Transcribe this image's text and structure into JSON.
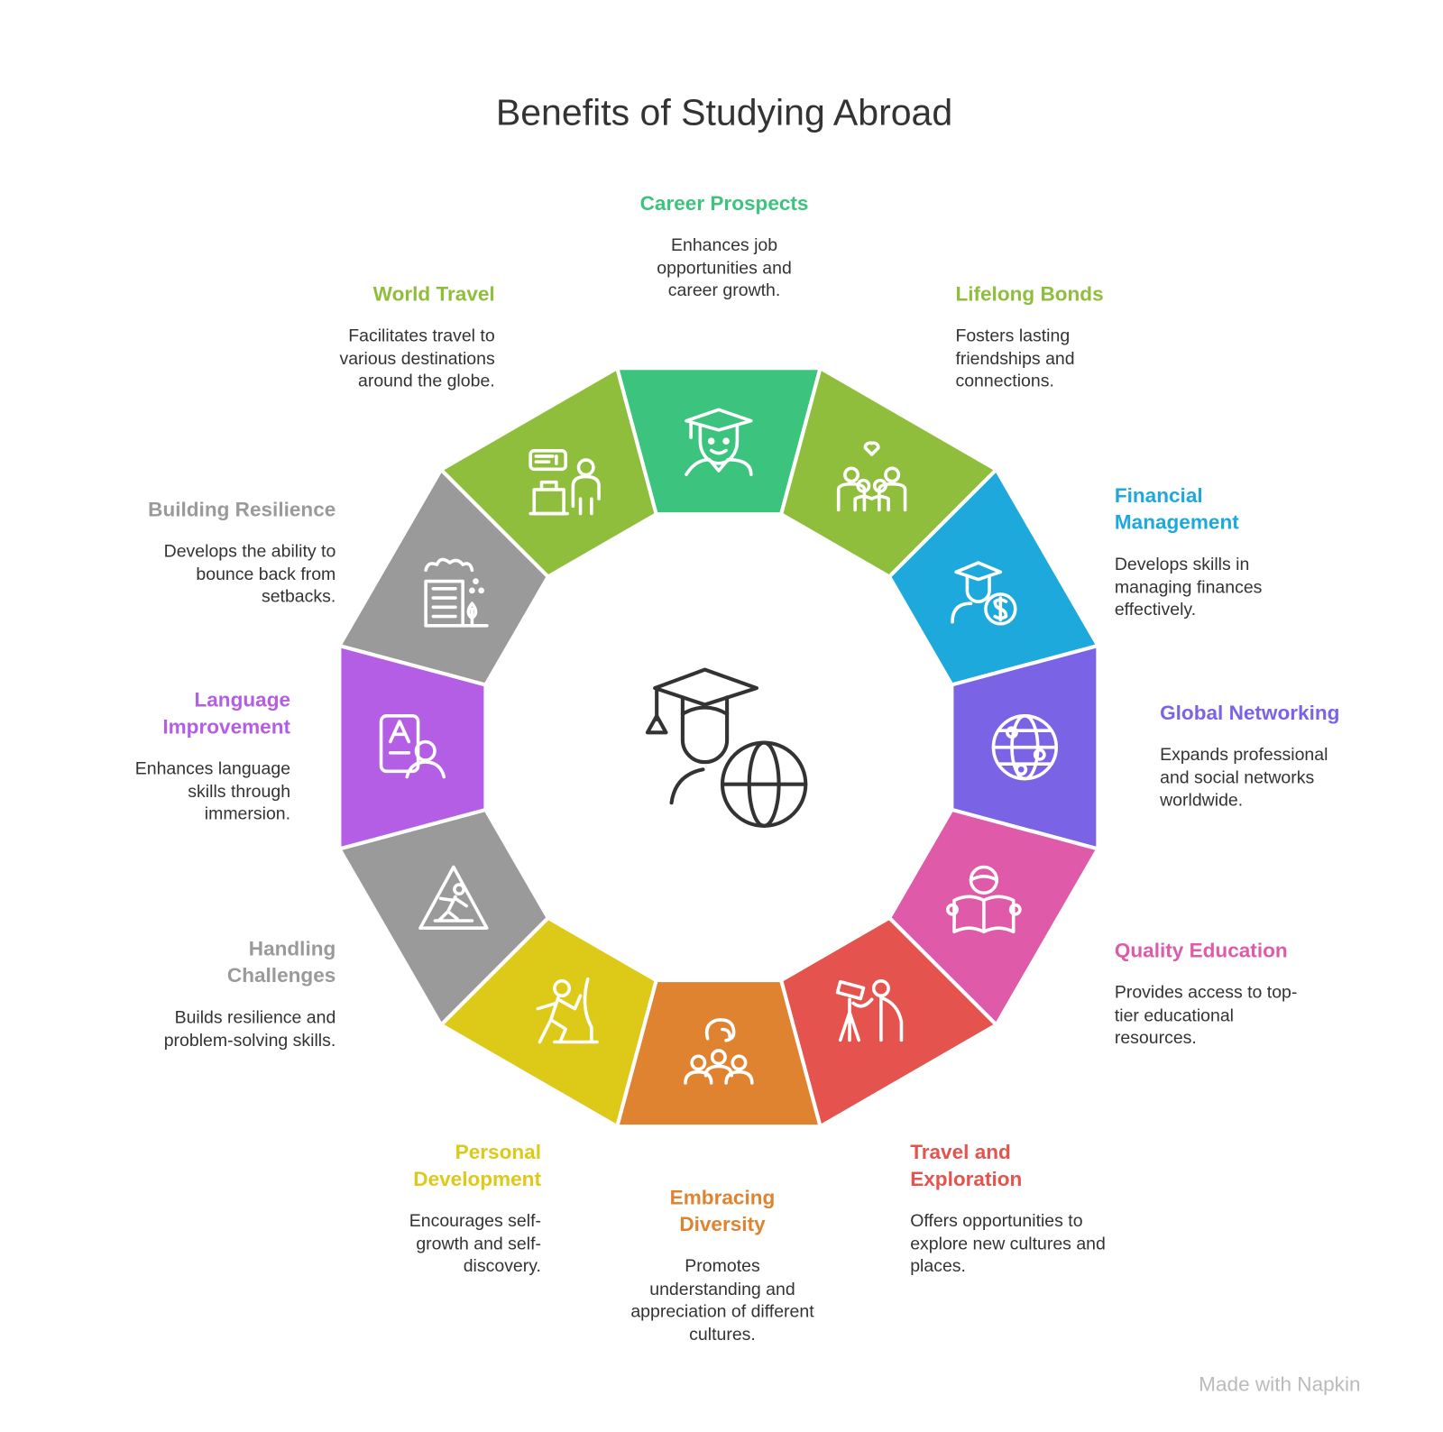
{
  "title": "Benefits of Studying Abroad",
  "watermark": "Made with Napkin",
  "items": [
    {
      "title": "Career Prospects",
      "desc": "Enhances job opportunities and career growth.",
      "color": "#3cc47f",
      "icon": "graduate-icon"
    },
    {
      "title": "Lifelong Bonds",
      "desc": "Fosters lasting friendships and connections.",
      "color": "#8fbe3c",
      "icon": "friends-heart-icon"
    },
    {
      "title": "Financial Management",
      "desc": "Develops skills in managing finances effectively.",
      "color": "#1ea9dc",
      "icon": "student-dollar-icon"
    },
    {
      "title": "Global Networking",
      "desc": "Expands professional and social networks worldwide.",
      "color": "#7b63e6",
      "icon": "globe-network-icon"
    },
    {
      "title": "Quality Education",
      "desc": "Provides access to top-tier educational resources.",
      "color": "#e05aaa",
      "icon": "reading-book-icon"
    },
    {
      "title": "Travel and Exploration",
      "desc": "Offers opportunities to explore new cultures and places.",
      "color": "#e5534f",
      "icon": "telescope-person-icon"
    },
    {
      "title": "Embracing Diversity",
      "desc": "Promotes understanding and appreciation of different cultures.",
      "color": "#e08330",
      "icon": "diverse-people-icon"
    },
    {
      "title": "Personal Development",
      "desc": "Encourages self-growth and self-discovery.",
      "color": "#ddc917",
      "icon": "climbing-person-icon"
    },
    {
      "title": "Handling Challenges",
      "desc": "Builds resilience and problem-solving skills.",
      "color": "#9a9a9a",
      "icon": "warning-sign-icon"
    },
    {
      "title": "Language Improvement",
      "desc": "Enhances language skills through immersion.",
      "color": "#b45ee6",
      "icon": "language-book-icon"
    },
    {
      "title": "Building Resilience",
      "desc": "Develops the ability to bounce back from setbacks.",
      "color": "#9a9a9a",
      "icon": "building-storm-icon"
    },
    {
      "title": "World Travel",
      "desc": "Facilitates travel to various destinations around the globe.",
      "color": "#8fbe3c",
      "icon": "traveler-luggage-icon"
    }
  ]
}
